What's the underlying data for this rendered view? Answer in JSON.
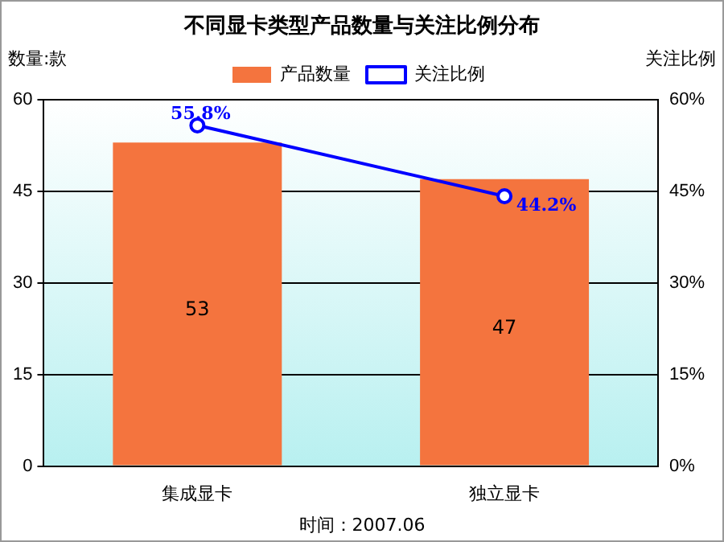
{
  "chart_data": {
    "type": "bar",
    "title": "不同显卡类型产品数量与关注比例分布",
    "ylabel": "数量:款",
    "y2label": "关注比例",
    "categories": [
      "集成显卡",
      "独立显卡"
    ],
    "series": [
      {
        "name": "产品数量",
        "color": "#f4743e",
        "values": [
          53,
          47
        ],
        "value_labels": [
          "53",
          "47"
        ]
      },
      {
        "name": "关注比例",
        "type": "line",
        "axis": "y2",
        "color": "#0000ff",
        "marker": "circle",
        "values": [
          55.8,
          44.2
        ],
        "value_labels": [
          "55.8%",
          "44.2%"
        ]
      }
    ],
    "ylim": [
      0,
      60
    ],
    "yticks": [
      0,
      15,
      30,
      45,
      60
    ],
    "y2lim": [
      0,
      60
    ],
    "y2ticks": [
      {
        "value": 0,
        "label": "0%"
      },
      {
        "value": 15,
        "label": "15%"
      },
      {
        "value": 30,
        "label": "30%"
      },
      {
        "value": 45,
        "label": "45%"
      },
      {
        "value": 60,
        "label": "60%"
      }
    ],
    "grid": "y",
    "legend": "top",
    "annotations": [
      "时间：2007.06"
    ]
  }
}
